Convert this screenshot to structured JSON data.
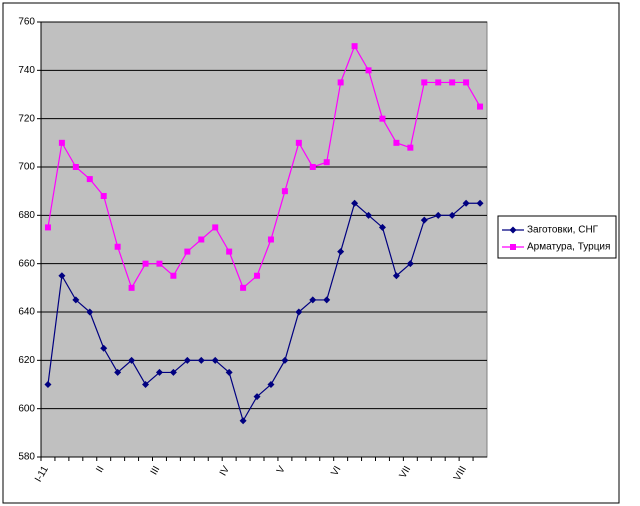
{
  "chart_data": {
    "type": "line",
    "categories": [
      "I-11",
      null,
      null,
      null,
      "II",
      null,
      null,
      null,
      "III",
      null,
      null,
      null,
      null,
      "IV",
      null,
      null,
      null,
      "V",
      null,
      null,
      null,
      "VI",
      null,
      null,
      null,
      null,
      "VII",
      null,
      null,
      null,
      "VIII",
      null
    ],
    "series": [
      {
        "name": "Заготовки, СНГ",
        "color": "#000080",
        "marker": "diamond",
        "values": [
          610,
          655,
          645,
          640,
          625,
          615,
          620,
          610,
          615,
          615,
          620,
          620,
          620,
          615,
          595,
          605,
          610,
          620,
          640,
          645,
          645,
          665,
          685,
          680,
          675,
          655,
          660,
          678,
          680,
          680,
          685,
          685
        ]
      },
      {
        "name": "Арматура, Турция",
        "color": "#ff00ff",
        "marker": "square",
        "values": [
          675,
          710,
          700,
          695,
          688,
          667,
          650,
          660,
          660,
          655,
          665,
          670,
          675,
          665,
          650,
          655,
          670,
          690,
          710,
          700,
          702,
          735,
          750,
          740,
          720,
          710,
          708,
          735,
          735,
          735,
          735,
          725
        ]
      }
    ],
    "ylim": [
      580,
      760
    ],
    "yticks": [
      580,
      600,
      620,
      640,
      660,
      680,
      700,
      720,
      740,
      760
    ],
    "grid": true
  }
}
